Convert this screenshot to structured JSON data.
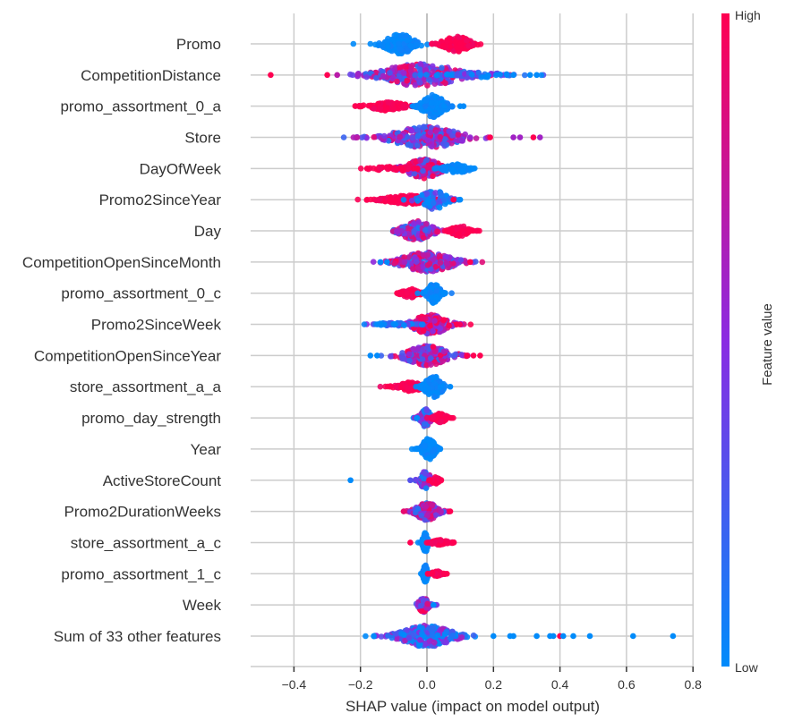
{
  "chart_data": {
    "type": "scatter",
    "subtype": "shap-beeswarm",
    "xlabel": "SHAP value (impact on model output)",
    "xlim": [
      -0.53,
      0.8
    ],
    "xticks": [
      -0.4,
      -0.2,
      0.0,
      0.2,
      0.4,
      0.6,
      0.8
    ],
    "xtick_labels": [
      "−0.4",
      "−0.2",
      "0.0",
      "0.2",
      "0.4",
      "0.6",
      "0.8"
    ],
    "grid": true,
    "colorbar": {
      "title": "Feature value",
      "high_label": "High",
      "low_label": "Low",
      "high_color": "#ff0051",
      "mid_color": "#8a2be2",
      "low_color": "#008bfb"
    },
    "features": [
      {
        "name": "Promo",
        "clusters": [
          {
            "center": -0.08,
            "spread": 0.035,
            "count": 160,
            "width": 11,
            "color": 0.0
          },
          {
            "center": 0.09,
            "spread": 0.03,
            "count": 150,
            "width": 9,
            "color": 1.0
          }
        ],
        "outliers": []
      },
      {
        "name": "CompetitionDistance",
        "clusters": [
          {
            "center": -0.02,
            "spread": 0.09,
            "count": 260,
            "width": 13,
            "color": 0.55
          },
          {
            "center": 0.14,
            "spread": 0.07,
            "count": 70,
            "width": 3,
            "color": 0.1
          }
        ],
        "outliers": [
          {
            "x": -0.47,
            "c": 1.0
          },
          {
            "x": -0.3,
            "c": 1.0
          },
          {
            "x": -0.27,
            "c": 0.7
          },
          {
            "x": 0.26,
            "c": 0.0
          },
          {
            "x": 0.31,
            "c": 0.0
          },
          {
            "x": 0.33,
            "c": 0.0
          }
        ]
      },
      {
        "name": "promo_assortment_0_a",
        "clusters": [
          {
            "center": -0.12,
            "spread": 0.04,
            "count": 120,
            "width": 5,
            "color": 1.0
          },
          {
            "center": 0.02,
            "spread": 0.025,
            "count": 140,
            "width": 13,
            "color": 0.0
          }
        ],
        "outliers": [
          {
            "x": -0.2,
            "c": 1.0
          },
          {
            "x": 0.1,
            "c": 0.0
          },
          {
            "x": 0.11,
            "c": 0.0
          }
        ]
      },
      {
        "name": "Store",
        "clusters": [
          {
            "center": 0.0,
            "spread": 0.08,
            "count": 260,
            "width": 12,
            "color": 0.5
          }
        ],
        "outliers": [
          {
            "x": -0.21,
            "c": 0.7
          },
          {
            "x": 0.19,
            "c": 1.0
          },
          {
            "x": 0.26,
            "c": 0.6
          },
          {
            "x": 0.28,
            "c": 0.6
          },
          {
            "x": 0.32,
            "c": 1.0
          },
          {
            "x": 0.34,
            "c": 0.6
          }
        ]
      },
      {
        "name": "DayOfWeek",
        "clusters": [
          {
            "center": -0.01,
            "spread": 0.04,
            "count": 180,
            "width": 11,
            "color": 0.65
          },
          {
            "center": -0.12,
            "spread": 0.04,
            "count": 40,
            "width": 2,
            "color": 1.0
          },
          {
            "center": 0.09,
            "spread": 0.03,
            "count": 70,
            "width": 5,
            "color": 0.0
          }
        ],
        "outliers": [
          {
            "x": -0.18,
            "c": 1.0
          },
          {
            "x": 0.14,
            "c": 0.0
          }
        ]
      },
      {
        "name": "Promo2SinceYear",
        "clusters": [
          {
            "center": -0.06,
            "spread": 0.05,
            "count": 200,
            "width": 5,
            "color": 1.0
          },
          {
            "center": 0.02,
            "spread": 0.03,
            "count": 80,
            "width": 11,
            "color": 0.1
          }
        ],
        "outliers": [
          {
            "x": -0.18,
            "c": 1.0
          },
          {
            "x": 0.08,
            "c": 1.0
          },
          {
            "x": 0.1,
            "c": 0.0
          }
        ]
      },
      {
        "name": "Day",
        "clusters": [
          {
            "center": -0.03,
            "spread": 0.035,
            "count": 160,
            "width": 11,
            "color": 0.5
          },
          {
            "center": 0.1,
            "spread": 0.02,
            "count": 80,
            "width": 6,
            "color": 1.0
          }
        ],
        "outliers": []
      },
      {
        "name": "CompetitionOpenSinceMonth",
        "clusters": [
          {
            "center": 0.0,
            "spread": 0.06,
            "count": 240,
            "width": 11,
            "color": 0.55
          }
        ],
        "outliers": [
          {
            "x": -0.14,
            "c": 0.0
          },
          {
            "x": -0.12,
            "c": 0.0
          },
          {
            "x": 0.13,
            "c": 1.0
          }
        ]
      },
      {
        "name": "promo_assortment_0_c",
        "clusters": [
          {
            "center": -0.05,
            "spread": 0.02,
            "count": 80,
            "width": 5,
            "color": 1.0
          },
          {
            "center": 0.02,
            "spread": 0.015,
            "count": 100,
            "width": 11,
            "color": 0.0
          }
        ],
        "outliers": [
          {
            "x": -0.09,
            "c": 1.0
          },
          {
            "x": 0.05,
            "c": 0.0
          }
        ]
      },
      {
        "name": "Promo2SinceWeek",
        "clusters": [
          {
            "center": 0.01,
            "spread": 0.04,
            "count": 180,
            "width": 11,
            "color": 0.8
          },
          {
            "center": -0.1,
            "spread": 0.04,
            "count": 50,
            "width": 2,
            "color": 0.1
          }
        ],
        "outliers": [
          {
            "x": -0.15,
            "c": 0.0
          },
          {
            "x": -0.14,
            "c": 0.0
          },
          {
            "x": 0.09,
            "c": 1.0
          }
        ]
      },
      {
        "name": "CompetitionOpenSinceYear",
        "clusters": [
          {
            "center": 0.0,
            "spread": 0.05,
            "count": 220,
            "width": 11,
            "color": 0.6
          }
        ],
        "outliers": [
          {
            "x": -0.17,
            "c": 0.0
          },
          {
            "x": -0.15,
            "c": 0.0
          },
          {
            "x": 0.12,
            "c": 1.0
          },
          {
            "x": 0.14,
            "c": 1.0
          },
          {
            "x": 0.16,
            "c": 1.0
          }
        ]
      },
      {
        "name": "store_assortment_a_a",
        "clusters": [
          {
            "center": -0.05,
            "spread": 0.03,
            "count": 120,
            "width": 5,
            "color": 1.0
          },
          {
            "center": 0.02,
            "spread": 0.02,
            "count": 110,
            "width": 12,
            "color": 0.0
          }
        ],
        "outliers": [
          {
            "x": -0.11,
            "c": 1.0
          },
          {
            "x": 0.07,
            "c": 0.0
          }
        ]
      },
      {
        "name": "promo_day_strength",
        "clusters": [
          {
            "center": -0.005,
            "spread": 0.012,
            "count": 90,
            "width": 10,
            "color": 0.35
          },
          {
            "center": 0.04,
            "spread": 0.015,
            "count": 60,
            "width": 5,
            "color": 1.0
          }
        ],
        "outliers": [
          {
            "x": -0.03,
            "c": 0.0
          },
          {
            "x": 0.07,
            "c": 1.0
          }
        ]
      },
      {
        "name": "Year",
        "clusters": [
          {
            "center": 0.005,
            "spread": 0.015,
            "count": 120,
            "width": 12,
            "color": 0.0
          }
        ],
        "outliers": [
          {
            "x": -0.03,
            "c": 0.0
          },
          {
            "x": 0.04,
            "c": 0.0
          }
        ]
      },
      {
        "name": "ActiveStoreCount",
        "clusters": [
          {
            "center": -0.005,
            "spread": 0.012,
            "count": 90,
            "width": 10,
            "color": 0.45
          },
          {
            "center": 0.025,
            "spread": 0.01,
            "count": 30,
            "width": 4,
            "color": 1.0
          }
        ],
        "outliers": [
          {
            "x": -0.23,
            "c": 0.0
          },
          {
            "x": -0.05,
            "c": 0.3
          }
        ]
      },
      {
        "name": "Promo2DurationWeeks",
        "clusters": [
          {
            "center": 0.0,
            "spread": 0.025,
            "count": 150,
            "width": 10,
            "color": 0.55
          }
        ],
        "outliers": [
          {
            "x": -0.07,
            "c": 0.9
          },
          {
            "x": 0.07,
            "c": 1.0
          }
        ]
      },
      {
        "name": "store_assortment_a_c",
        "clusters": [
          {
            "center": -0.005,
            "spread": 0.006,
            "count": 110,
            "width": 11,
            "color": 0.0
          },
          {
            "center": 0.04,
            "spread": 0.02,
            "count": 60,
            "width": 3,
            "color": 1.0
          }
        ],
        "outliers": [
          {
            "x": -0.05,
            "c": 1.0
          },
          {
            "x": 0.08,
            "c": 1.0
          }
        ]
      },
      {
        "name": "promo_assortment_1_c",
        "clusters": [
          {
            "center": -0.005,
            "spread": 0.005,
            "count": 90,
            "width": 10,
            "color": 0.0
          },
          {
            "center": 0.03,
            "spread": 0.012,
            "count": 40,
            "width": 3,
            "color": 1.0
          }
        ],
        "outliers": [
          {
            "x": 0.06,
            "c": 1.0
          }
        ]
      },
      {
        "name": "Week",
        "clusters": [
          {
            "center": -0.01,
            "spread": 0.012,
            "count": 80,
            "width": 8,
            "color": 0.7
          }
        ],
        "outliers": [
          {
            "x": 0.02,
            "c": 0.0
          }
        ]
      },
      {
        "name": "Sum of 33 other features",
        "clusters": [
          {
            "center": 0.0,
            "spread": 0.06,
            "count": 300,
            "width": 12,
            "color": 0.2
          }
        ],
        "outliers": [
          {
            "x": -0.16,
            "c": 0.0
          },
          {
            "x": 0.2,
            "c": 0.0
          },
          {
            "x": 0.25,
            "c": 0.0
          },
          {
            "x": 0.26,
            "c": 0.0
          },
          {
            "x": 0.33,
            "c": 0.0
          },
          {
            "x": 0.37,
            "c": 0.0
          },
          {
            "x": 0.38,
            "c": 0.0
          },
          {
            "x": 0.4,
            "c": 1.0
          },
          {
            "x": 0.41,
            "c": 0.0
          },
          {
            "x": 0.44,
            "c": 0.0
          },
          {
            "x": 0.49,
            "c": 0.0
          },
          {
            "x": 0.62,
            "c": 0.0
          },
          {
            "x": 0.74,
            "c": 0.0
          }
        ]
      }
    ]
  }
}
